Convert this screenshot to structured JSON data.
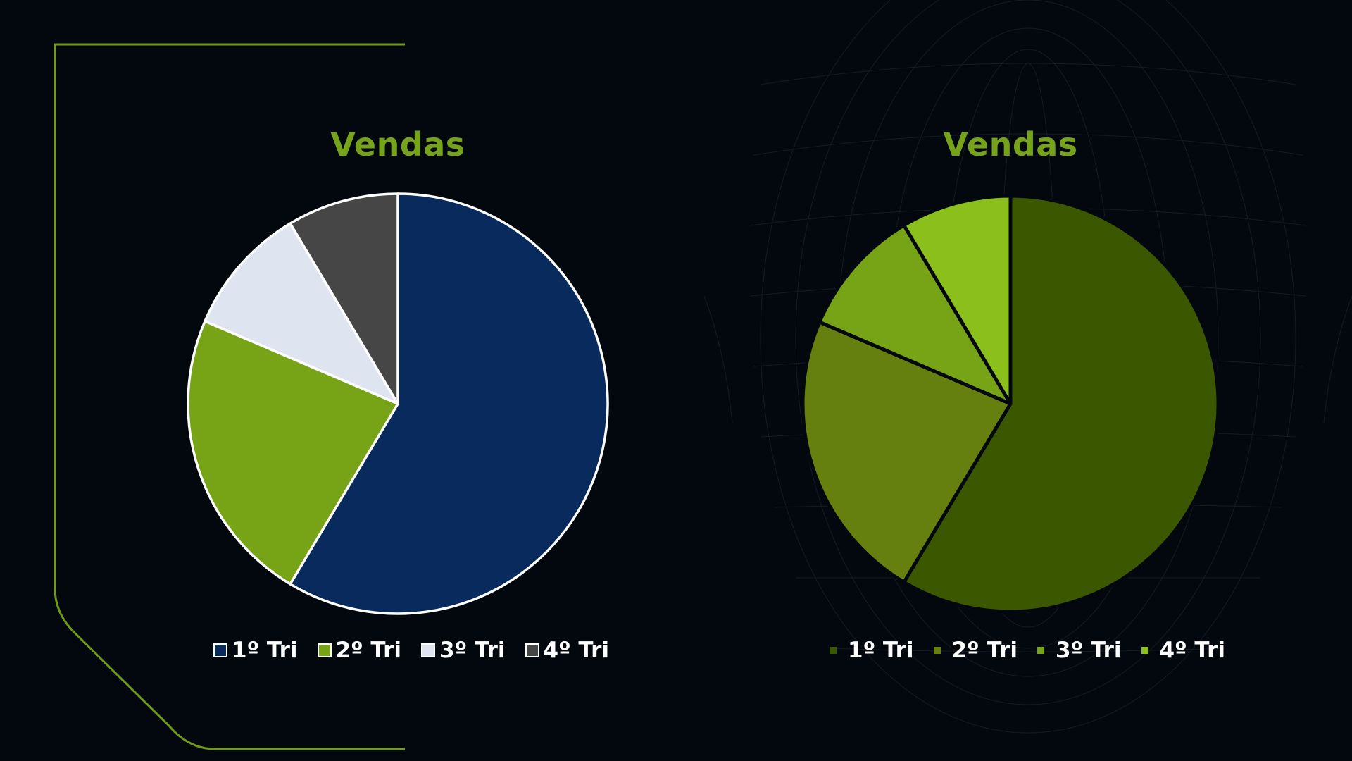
{
  "colors": {
    "background": "#03080f",
    "accent": "#77a31a",
    "frame_line": "#6f9a1a"
  },
  "chart_data": [
    {
      "type": "pie",
      "title": "Vendas",
      "categories": [
        "1º Tri",
        "2º Tri",
        "3º Tri",
        "4º Tri"
      ],
      "values": [
        8.2,
        3.2,
        1.4,
        1.2
      ],
      "colors": [
        "#082a5c",
        "#77a317",
        "#dfe5f0",
        "#464646"
      ],
      "slice_stroke": "#ffffff",
      "legend": "bottom",
      "legend_style": "outlined-box"
    },
    {
      "type": "pie",
      "title": "Vendas",
      "categories": [
        "1º Tri",
        "2º Tri",
        "3º Tri",
        "4º Tri"
      ],
      "values": [
        8.2,
        3.2,
        1.4,
        1.2
      ],
      "colors": [
        "#3b5700",
        "#65800e",
        "#77a317",
        "#8bbf1c"
      ],
      "slice_stroke": "#03080f",
      "legend": "bottom",
      "legend_style": "small-square"
    }
  ]
}
